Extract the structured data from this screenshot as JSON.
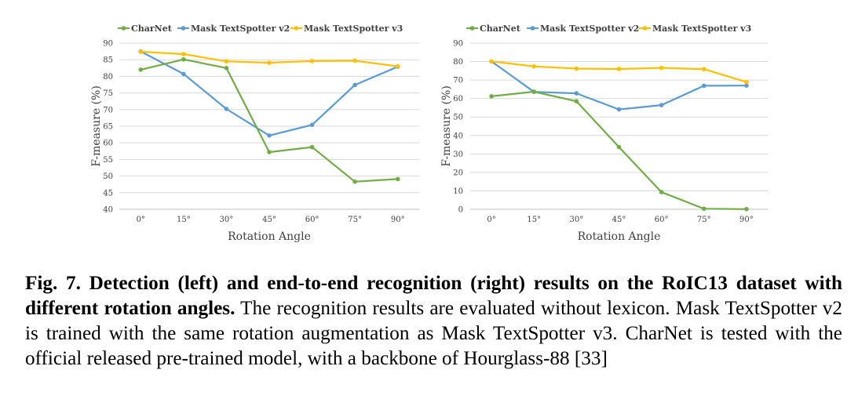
{
  "chart_data": [
    {
      "type": "line",
      "categories": [
        "0°",
        "15°",
        "30°",
        "45°",
        "60°",
        "75°",
        "90°"
      ],
      "xlabel": "Rotation Angle",
      "ylabel": "F-measure (%)",
      "ylim": [
        40,
        90
      ],
      "yticks": [
        40,
        45,
        50,
        55,
        60,
        65,
        70,
        75,
        80,
        85,
        90
      ],
      "grid": true,
      "legend_position": "top",
      "series": [
        {
          "name": "CharNet",
          "color": "#70ad47",
          "values": [
            82.0,
            85.1,
            82.5,
            57.2,
            58.7,
            48.3,
            49.1
          ]
        },
        {
          "name": "Mask TextSpotter v2",
          "color": "#5b9bd5",
          "values": [
            87.5,
            80.7,
            70.2,
            62.2,
            65.4,
            77.4,
            82.9
          ]
        },
        {
          "name": "Mask TextSpotter v3",
          "color": "#ffc000",
          "values": [
            87.4,
            86.7,
            84.5,
            84.1,
            84.6,
            84.7,
            83.0
          ]
        }
      ]
    },
    {
      "type": "line",
      "categories": [
        "0°",
        "15°",
        "30°",
        "45°",
        "60°",
        "75°",
        "90°"
      ],
      "xlabel": "Rotation Angle",
      "ylabel": "F-measure (%)",
      "ylim": [
        0,
        90
      ],
      "yticks": [
        0,
        10,
        20,
        30,
        40,
        50,
        60,
        70,
        80,
        90
      ],
      "grid": true,
      "legend_position": "top",
      "series": [
        {
          "name": "CharNet",
          "color": "#70ad47",
          "values": [
            61.2,
            63.7,
            58.5,
            33.7,
            9.3,
            0.3,
            0.1
          ]
        },
        {
          "name": "Mask TextSpotter v2",
          "color": "#5b9bd5",
          "values": [
            80.1,
            63.6,
            62.8,
            54.1,
            56.4,
            66.9,
            67.0
          ]
        },
        {
          "name": "Mask TextSpotter v3",
          "color": "#ffc000",
          "values": [
            80.1,
            77.4,
            76.2,
            76.0,
            76.6,
            75.9,
            68.9
          ]
        }
      ]
    }
  ],
  "caption": {
    "label": "Fig. 7. Detection (left) and end-to-end recognition (right) results on the RoIC13 dataset with different rotation angles.",
    "text": " The recognition results are evaluated without lexicon. Mask TextSpotter v2 is trained with the same rotation augmentation as Mask TextSpotter v3. CharNet is tested with the official released pre-trained model, with a backbone of Hourglass-88 [33]"
  }
}
